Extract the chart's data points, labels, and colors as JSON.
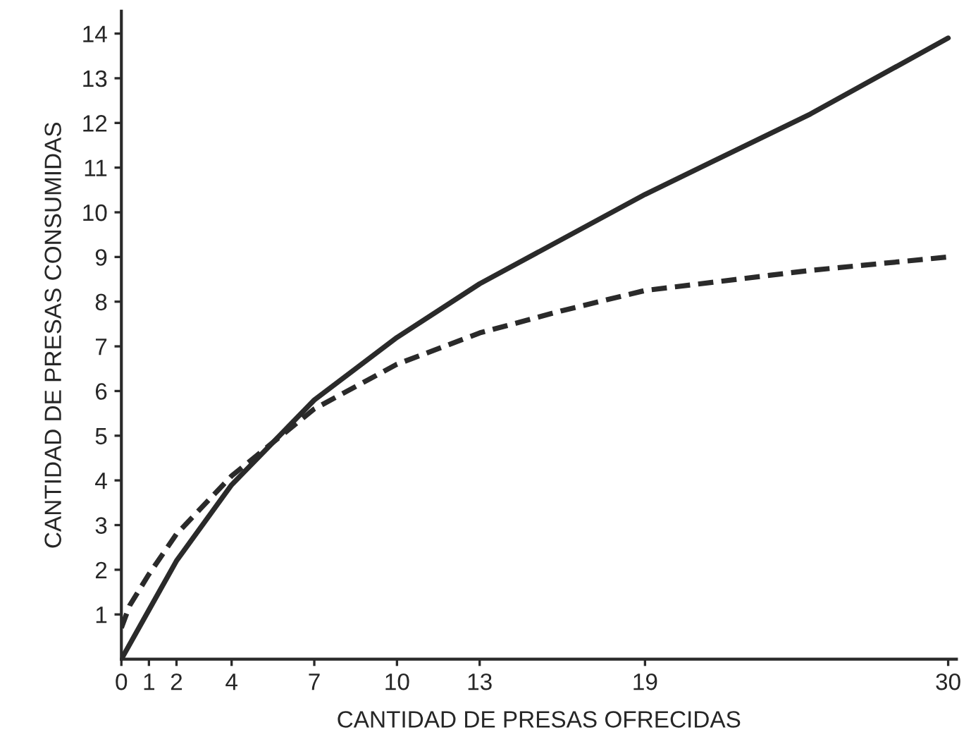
{
  "chart_data": {
    "type": "line",
    "xlabel": "CANTIDAD DE PRESAS OFRECIDAS",
    "ylabel": "CANTIDAD DE PRESAS CONSUMIDAS",
    "xlim": [
      0,
      30.3
    ],
    "ylim": [
      0,
      14.5
    ],
    "xticks": [
      0,
      1,
      2,
      4,
      7,
      10,
      13,
      19,
      30
    ],
    "yticks": [
      1,
      2,
      3,
      4,
      5,
      6,
      7,
      8,
      9,
      10,
      11,
      12,
      13,
      14
    ],
    "grid": false,
    "marker": "none",
    "series": [
      {
        "color": "#2a2a2a",
        "line_style": "solid",
        "x": [
          0,
          1,
          2,
          4,
          7,
          10,
          13,
          19,
          25,
          30
        ],
        "values": [
          0,
          1.1,
          2.2,
          3.9,
          5.8,
          7.2,
          8.4,
          10.4,
          12.2,
          13.9
        ]
      },
      {
        "color": "#2a2a2a",
        "line_style": "dashed",
        "x": [
          0,
          0.3,
          1,
          2,
          4,
          7,
          10,
          13,
          16,
          19,
          25,
          30
        ],
        "values": [
          0.7,
          1.2,
          1.9,
          2.8,
          4.1,
          5.6,
          6.6,
          7.3,
          7.8,
          8.25,
          8.7,
          9.0
        ]
      }
    ]
  }
}
